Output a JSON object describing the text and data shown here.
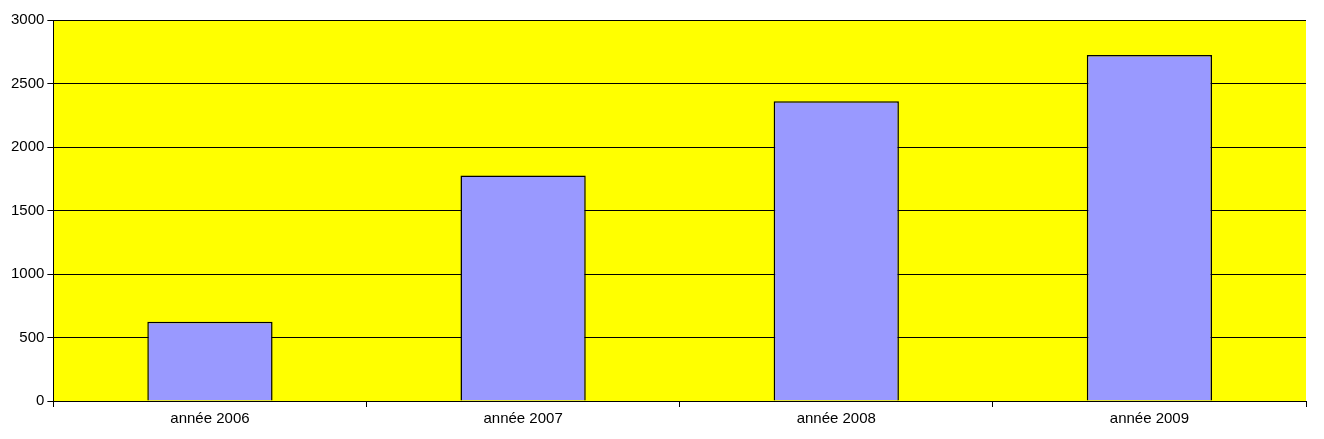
{
  "chart_data": {
    "type": "bar",
    "categories": [
      "année 2006",
      "année 2007",
      "année 2008",
      "année 2009"
    ],
    "values": [
      625,
      1775,
      2360,
      2725
    ],
    "color": "#9999ff",
    "ylim": [
      0,
      3000
    ],
    "yticks": [
      0,
      500,
      1000,
      1500,
      2000,
      2500,
      3000
    ],
    "grid": "y",
    "legend": false
  }
}
